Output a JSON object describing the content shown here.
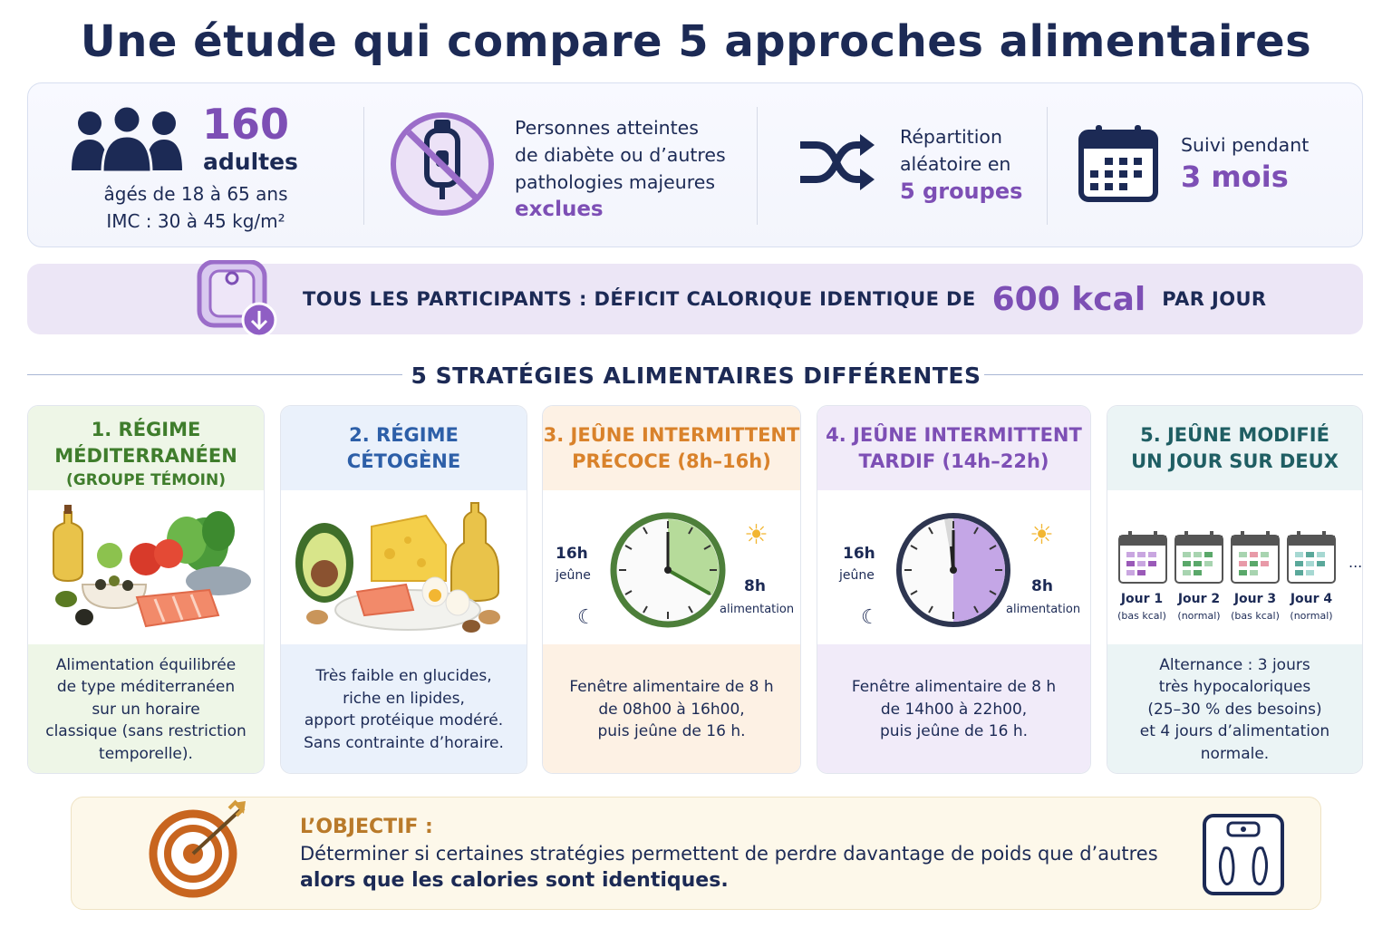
{
  "title": "Une étude qui compare 5 approches alimentaires",
  "info": {
    "participants_count": "160",
    "participants_unit": "adultes",
    "age_range": "âgés de 18 à 65 ans",
    "bmi_range": "IMC : 30 à 45 kg/m²",
    "exclusion_line1": "Personnes atteintes",
    "exclusion_line2": "de diabète ou d’autres",
    "exclusion_line3": "pathologies majeures",
    "exclusion_highlight": "exclues",
    "random_line1": "Répartition",
    "random_line2": "aléatoire en",
    "random_highlight": "5 groupes",
    "followup_line1": "Suivi pendant",
    "followup_highlight": "3 mois"
  },
  "deficit": {
    "prefix": "TOUS LES PARTICIPANTS : DÉFICIT CALORIQUE IDENTIQUE DE",
    "value": "600 kcal",
    "suffix": "PAR JOUR"
  },
  "section_title": "5 STRATÉGIES ALIMENTAIRES DIFFÉRENTES",
  "strategies": [
    {
      "title_line1": "1. RÉGIME",
      "title_line2": "MÉDITERRANÉEN",
      "title_line3": "(GROUPE TÉMOIN)",
      "desc": [
        "Alimentation équilibrée",
        "de type méditerranéen",
        "sur un horaire",
        "classique (sans restriction",
        "temporelle)."
      ],
      "color": "#3f7d2c",
      "bg": "#eef6e7"
    },
    {
      "title_line1": "2. RÉGIME",
      "title_line2": "CÉTOGÈNE",
      "desc": [
        "Très faible en glucides,",
        "riche en lipides,",
        "apport protéique modéré.",
        "Sans contrainte d’horaire."
      ],
      "color": "#2d5fa8",
      "bg": "#eaf1fb"
    },
    {
      "title_line1": "3. JEÛNE INTERMITTENT",
      "title_line2": "PRÉCOCE  (8h–16h)",
      "fast_label": "16h",
      "fast_word": "jeûne",
      "eat_label": "8h",
      "eat_word": "alimentation",
      "desc": [
        "Fenêtre alimentaire de 8 h",
        "de 08h00 à 16h00,",
        "puis jeûne de 16 h."
      ],
      "color": "#d9822b",
      "bg": "#fdf1e4"
    },
    {
      "title_line1": "4. JEÛNE INTERMITTENT",
      "title_line2": "TARDIF  (14h–22h)",
      "fast_label": "16h",
      "fast_word": "jeûne",
      "eat_label": "8h",
      "eat_word": "alimentation",
      "desc": [
        "Fenêtre alimentaire de 8 h",
        "de 14h00 à 22h00,",
        "puis jeûne de 16 h."
      ],
      "color": "#7d4fb5",
      "bg": "#f1ebf9"
    },
    {
      "title_line1": "5. JEÛNE MODIFIÉ",
      "title_line2": "UN JOUR SUR DEUX",
      "days": [
        {
          "label": "Jour 1",
          "sub": "(bas kcal)"
        },
        {
          "label": "Jour 2",
          "sub": "(normal)"
        },
        {
          "label": "Jour 3",
          "sub": "(bas kcal)"
        },
        {
          "label": "Jour 4",
          "sub": "(normal)"
        }
      ],
      "ellipsis": "...",
      "desc": [
        "Alternance : 3 jours",
        "très hypocaloriques",
        "(25–30 % des besoins)",
        "et 4 jours d’alimentation",
        "normale."
      ],
      "color": "#1f5e63",
      "bg": "#ebf4f5"
    }
  ],
  "objective": {
    "label": "L’OBJECTIF :",
    "line1": "Déterminer si certaines stratégies permettent de perdre davantage de poids que d’autres",
    "line2": "alors que les calories sont identiques."
  },
  "colors": {
    "navy": "#1c2a55",
    "purple": "#7d4fb5",
    "orange": "#c8651f"
  }
}
